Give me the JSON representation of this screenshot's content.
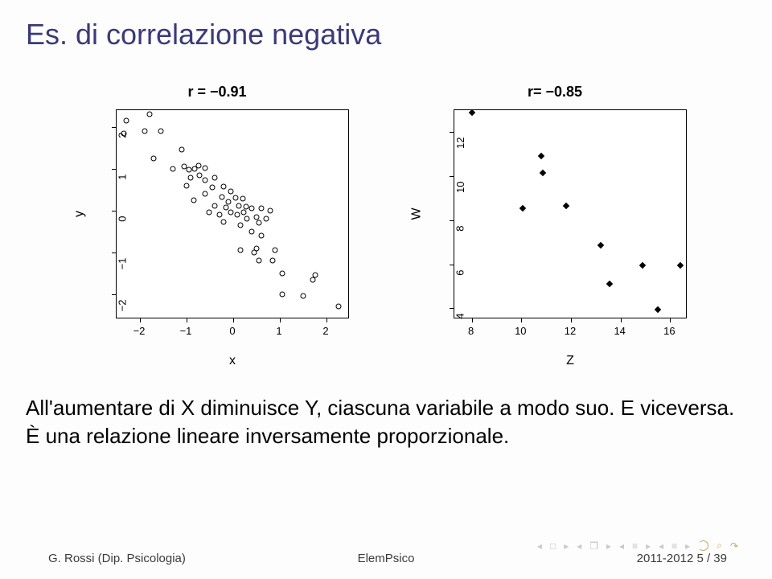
{
  "title": "Es. di correlazione negativa",
  "body_text": "All'aumentare di X diminuisce Y, ciascuna variabile a modo suo. E viceversa. È una relazione lineare inversamente proporzionale.",
  "footer": {
    "left": "G. Rossi (Dip. Psicologia)",
    "center": "ElemPsico",
    "right": "2011-2012      5 / 39"
  },
  "colors": {
    "title": "#3b3a7a",
    "background": "#fdfdfd",
    "axis": "#000000",
    "text": "#000000",
    "point_stroke": "#000000",
    "diamond_fill": "#000000"
  },
  "chart_left": {
    "type": "scatter",
    "title": "r = −0.91",
    "xlabel": "x",
    "ylabel": "y",
    "xlim": [
      -2.5,
      2.5
    ],
    "ylim": [
      -2.6,
      2.4
    ],
    "xticks": [
      -2,
      -1,
      0,
      1,
      2
    ],
    "yticks": [
      -2,
      -1,
      0,
      1,
      2
    ],
    "marker": "open-circle",
    "marker_size": 7,
    "points": [
      [
        -2.3,
        2.15
      ],
      [
        -1.8,
        2.3
      ],
      [
        -2.35,
        1.85
      ],
      [
        -1.9,
        1.9
      ],
      [
        -1.55,
        1.9
      ],
      [
        -1.7,
        1.25
      ],
      [
        -1.1,
        1.45
      ],
      [
        -1.3,
        1.0
      ],
      [
        -1.05,
        1.06
      ],
      [
        -0.95,
        0.98
      ],
      [
        -0.82,
        1.0
      ],
      [
        -0.75,
        1.08
      ],
      [
        -0.6,
        1.02
      ],
      [
        -0.72,
        0.85
      ],
      [
        -0.92,
        0.78
      ],
      [
        -1.0,
        0.6
      ],
      [
        -0.6,
        0.72
      ],
      [
        -0.4,
        0.78
      ],
      [
        -0.45,
        0.55
      ],
      [
        -0.6,
        0.4
      ],
      [
        -0.85,
        0.25
      ],
      [
        -0.2,
        0.58
      ],
      [
        -0.25,
        0.32
      ],
      [
        -0.05,
        0.45
      ],
      [
        -0.1,
        0.2
      ],
      [
        -0.4,
        0.12
      ],
      [
        -0.15,
        0.08
      ],
      [
        -0.3,
        -0.1
      ],
      [
        -0.52,
        -0.05
      ],
      [
        -0.05,
        -0.05
      ],
      [
        -0.2,
        -0.28
      ],
      [
        0.05,
        0.3
      ],
      [
        0.12,
        0.12
      ],
      [
        0.2,
        0.28
      ],
      [
        0.28,
        0.1
      ],
      [
        0.08,
        -0.1
      ],
      [
        0.22,
        -0.05
      ],
      [
        0.4,
        0.05
      ],
      [
        0.3,
        -0.2
      ],
      [
        0.15,
        -0.35
      ],
      [
        0.5,
        -0.15
      ],
      [
        0.6,
        0.05
      ],
      [
        0.55,
        -0.3
      ],
      [
        0.8,
        0.0
      ],
      [
        0.7,
        -0.2
      ],
      [
        0.4,
        -0.5
      ],
      [
        0.6,
        -0.6
      ],
      [
        0.5,
        -0.9
      ],
      [
        0.45,
        -1.0
      ],
      [
        0.15,
        -0.95
      ],
      [
        0.9,
        -0.95
      ],
      [
        0.55,
        -1.2
      ],
      [
        0.85,
        -1.2
      ],
      [
        1.05,
        -1.5
      ],
      [
        1.75,
        -1.55
      ],
      [
        1.7,
        -1.65
      ],
      [
        1.05,
        -2.0
      ],
      [
        1.5,
        -2.05
      ],
      [
        2.25,
        -2.3
      ]
    ]
  },
  "chart_right": {
    "type": "scatter",
    "title": "r= −0.85",
    "xlabel": "Z",
    "ylabel": "W",
    "xlim": [
      7.3,
      16.7
    ],
    "ylim": [
      3.5,
      13.0
    ],
    "xticks": [
      8,
      10,
      12,
      14,
      16
    ],
    "yticks": [
      4,
      6,
      8,
      10,
      12
    ],
    "marker": "filled-diamond",
    "marker_size": 6,
    "points": [
      [
        8.0,
        12.9
      ],
      [
        10.8,
        10.9
      ],
      [
        10.85,
        10.15
      ],
      [
        10.05,
        8.55
      ],
      [
        11.8,
        8.65
      ],
      [
        13.2,
        6.85
      ],
      [
        14.9,
        5.95
      ],
      [
        16.4,
        5.95
      ],
      [
        13.55,
        5.1
      ],
      [
        15.5,
        3.95
      ]
    ]
  }
}
